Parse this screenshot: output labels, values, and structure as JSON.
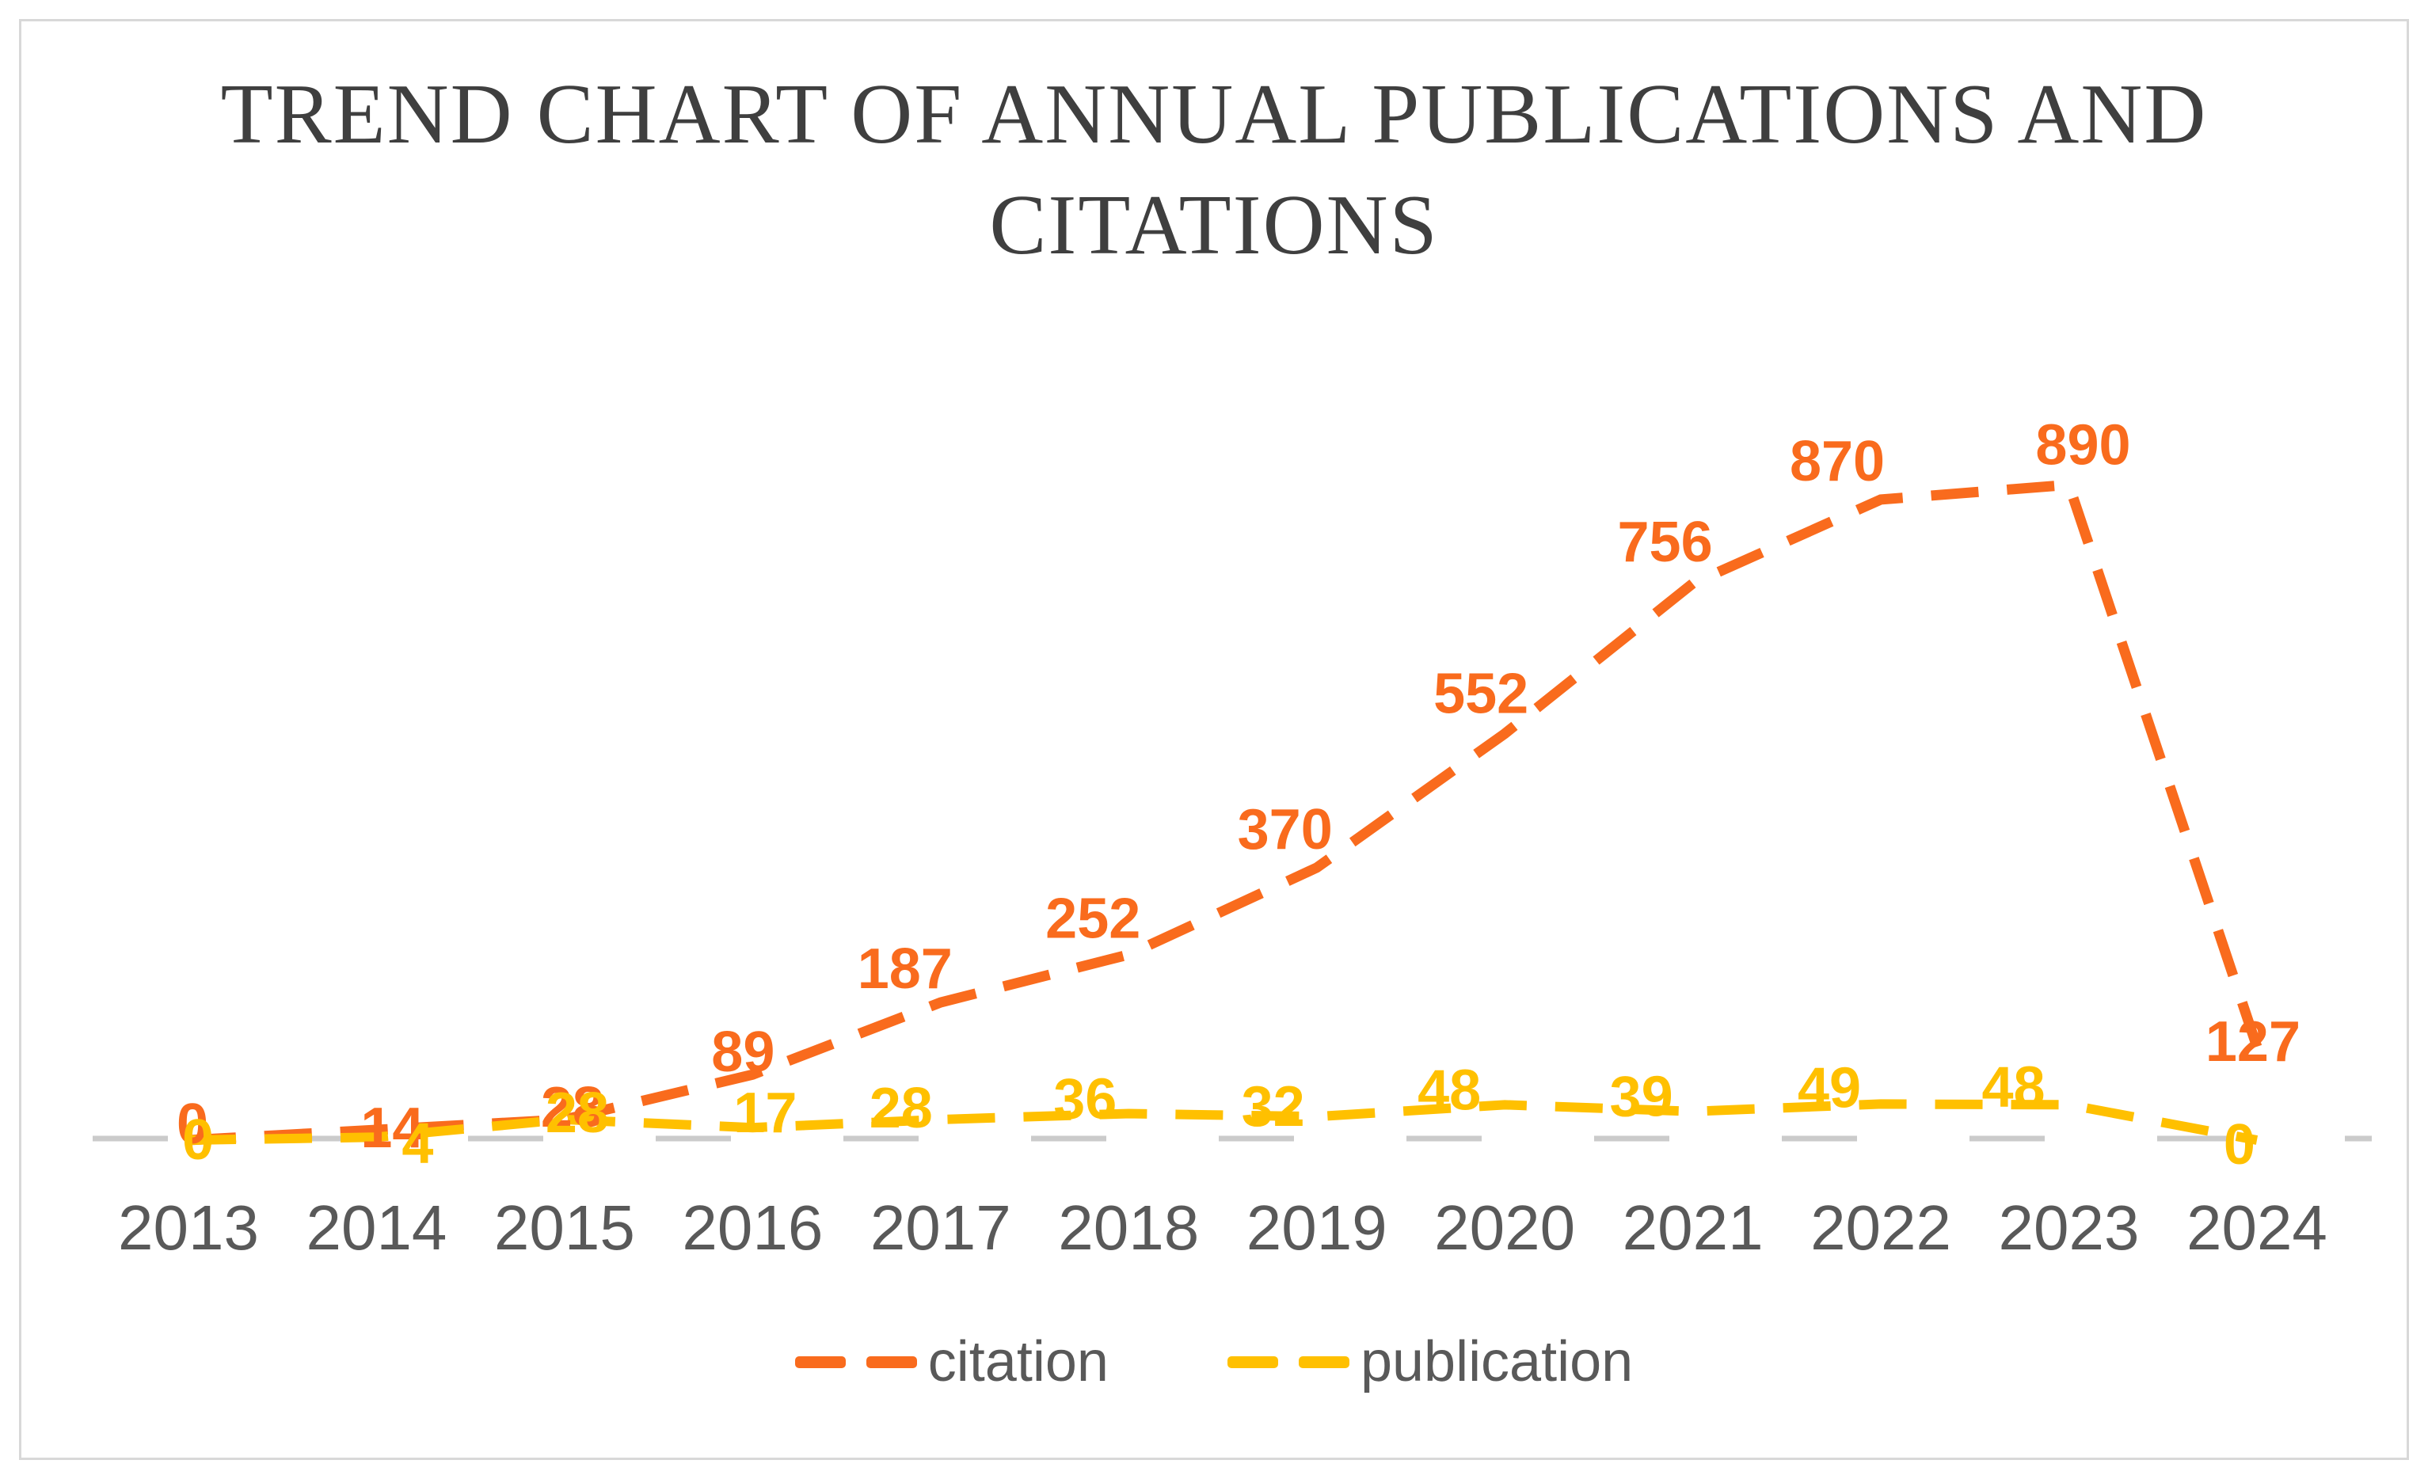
{
  "chart_data": {
    "type": "line",
    "title": "TREND CHART OF ANNUAL PUBLICATIONS AND CITATIONS",
    "title_lines": [
      "TREND CHART OF ANNUAL PUBLICATIONS AND",
      "CITATIONS"
    ],
    "categories": [
      "2013",
      "2014",
      "2015",
      "2016",
      "2017",
      "2018",
      "2019",
      "2020",
      "2021",
      "2022",
      "2023",
      "2024"
    ],
    "series": [
      {
        "name": "citation",
        "color": "#F96B1D",
        "values": [
          0,
          14,
          28,
          89,
          187,
          252,
          370,
          552,
          756,
          870,
          890,
          127
        ]
      },
      {
        "name": "publication",
        "color": "#FFC000",
        "values": [
          0,
          4,
          28,
          17,
          28,
          36,
          32,
          48,
          39,
          49,
          48,
          0
        ]
      }
    ],
    "ylim": [
      0,
      890
    ],
    "grid": false,
    "legend_position": "bottom",
    "line_style": "dashed",
    "data_labels": true
  },
  "colors": {
    "title": "#3F3F3F",
    "axis_text": "#595959",
    "legend_text": "#595959",
    "axis_line": "#CBCBCB",
    "frame_border": "#D8D8D8",
    "background": "#FFFFFF"
  }
}
